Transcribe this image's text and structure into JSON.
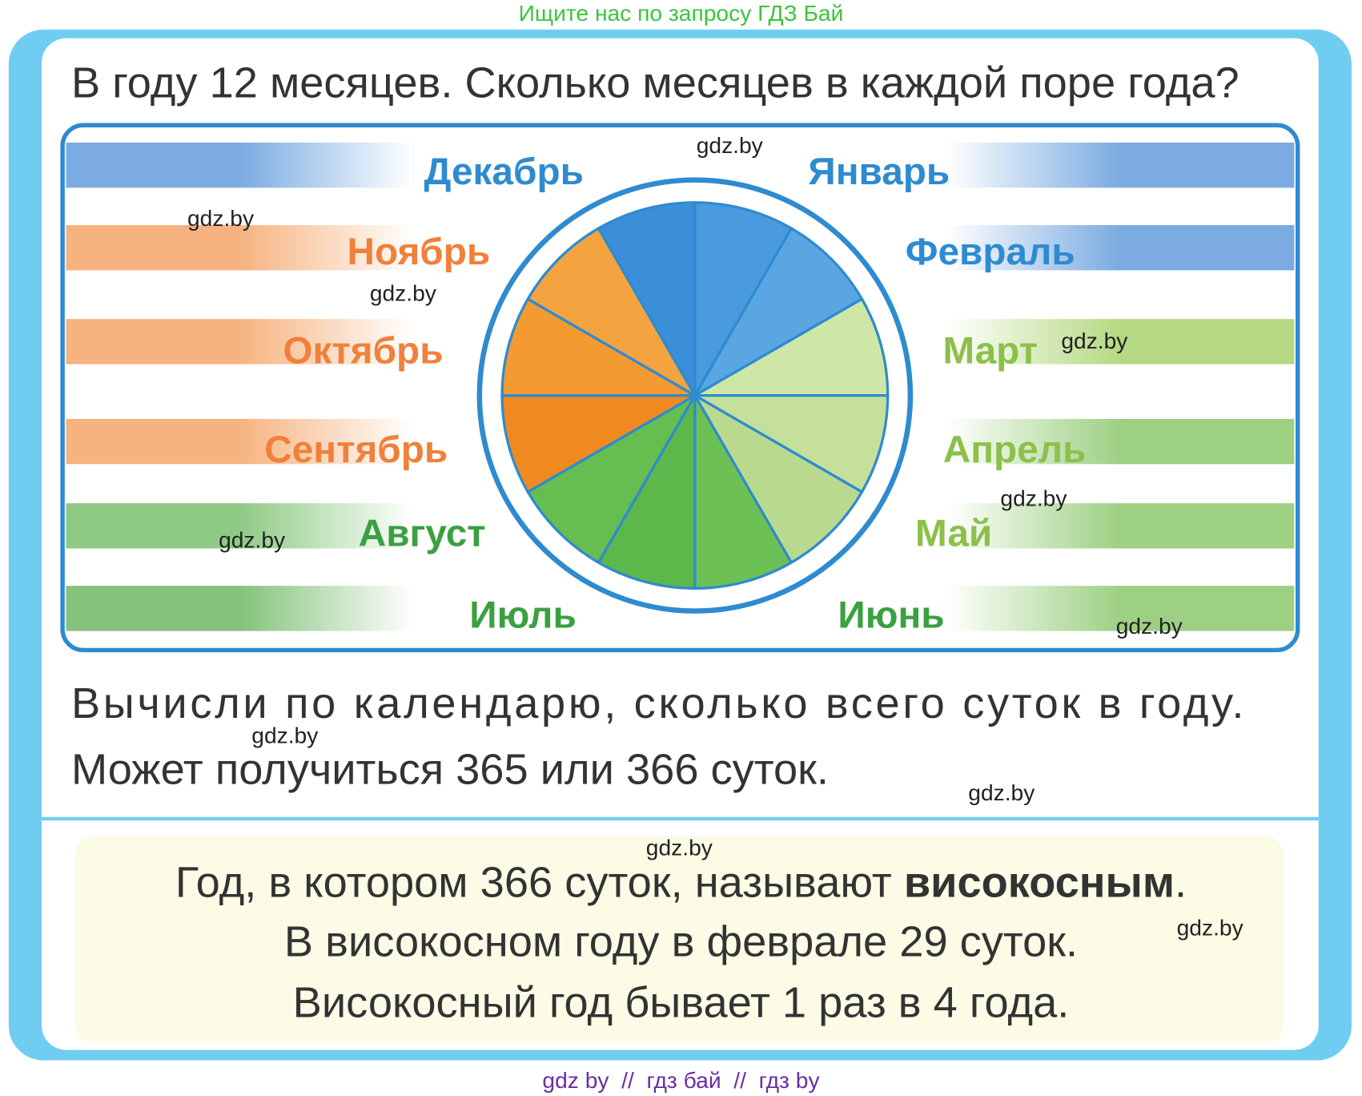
{
  "header": {
    "search_hint": "Ищите нас по запросу ГДЗ Бай"
  },
  "question": "В году 12 месяцев. Сколько месяцев в каждой поре года?",
  "months": [
    "Декабрь",
    "Январь",
    "Февраль",
    "Март",
    "Апрель",
    "Май",
    "Июнь",
    "Июль",
    "Август",
    "Сентябрь",
    "Октябрь",
    "Ноябрь"
  ],
  "task": [
    "Вычисли по календарю, сколько всего суток в году.",
    "Может получиться 365 или 366 суток."
  ],
  "rule": {
    "line1_start": "Год, в котором 366 суток, называют ",
    "line1_bold": "високосным",
    "line1_end": ".",
    "line2": "В високосном году в феврале 29 суток.",
    "line3": "Високосный год бывает 1 раз в 4 года."
  },
  "watermarks": [
    "gdz.by",
    "gdz.by",
    "gdz.by",
    "gdz.by",
    "gdz.by",
    "gdz.by",
    "gdz.by",
    "gdz.by",
    "gdz.by",
    "gdz.by",
    "gdz.by"
  ],
  "footer": "gdz by  //  гдз бай  //  гдз by"
}
